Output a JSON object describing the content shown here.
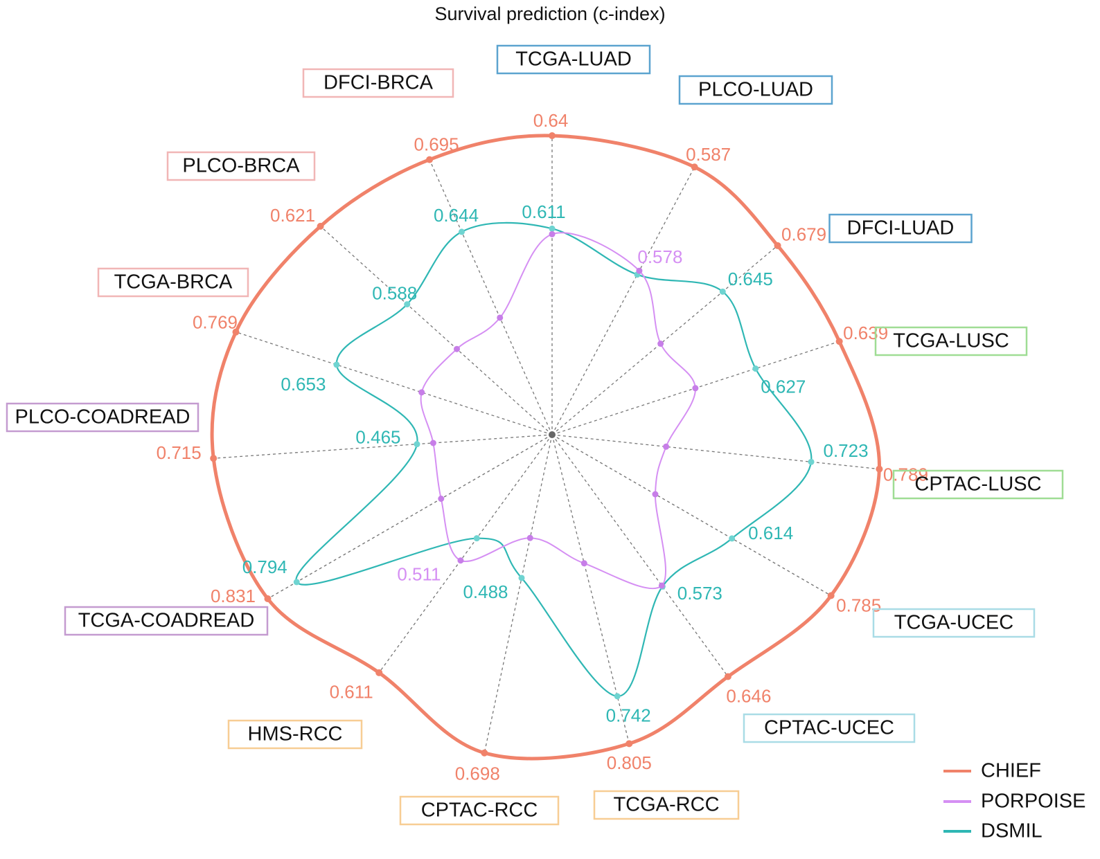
{
  "chart_data": {
    "type": "radar",
    "title": "Survival prediction (c-index)",
    "categories": [
      "TCGA-LUAD",
      "PLCO-LUAD",
      "DFCI-LUAD",
      "TCGA-LUSC",
      "CPTAC-LUSC",
      "TCGA-UCEC",
      "CPTAC-UCEC",
      "TCGA-RCC",
      "CPTAC-RCC",
      "HMS-RCC",
      "TCGA-COADREAD",
      "PLCO-COADREAD",
      "TCGA-BRCA",
      "PLCO-BRCA",
      "DFCI-BRCA"
    ],
    "category_colors": [
      "#5ba3cf",
      "#5ba3cf",
      "#5ba3cf",
      "#9fdd94",
      "#9fdd94",
      "#a9dce6",
      "#a9dce6",
      "#f7cd94",
      "#f7cd94",
      "#f7cd94",
      "#c49bd0",
      "#c49bd0",
      "#f1b6b6",
      "#f1b6b6",
      "#f1b6b6"
    ],
    "series": [
      {
        "name": "CHIEF",
        "color": "#f0826a",
        "values": [
          0.64,
          0.587,
          0.679,
          0.639,
          0.789,
          0.785,
          0.646,
          0.805,
          0.698,
          0.611,
          0.831,
          0.715,
          0.769,
          0.621,
          0.695
        ],
        "labels": [
          "0.64",
          "0.587",
          "0.679",
          "0.639",
          "0.789",
          "0.785",
          "0.646",
          "0.805",
          "0.698",
          "0.611",
          "0.831",
          "0.715",
          "0.769",
          "0.621",
          "0.695"
        ]
      },
      {
        "name": "PORPOISE",
        "color": "#d58ff3",
        "values": [
          0.611,
          0.578,
          0.48,
          0.5,
          0.42,
          0.43,
          0.58,
          0.46,
          0.4,
          0.511,
          0.45,
          0.43,
          0.47,
          0.45,
          0.45
        ],
        "labels": [
          "",
          "0.578",
          "",
          "",
          "",
          "",
          "",
          "",
          "",
          "0.511",
          "",
          "",
          "",
          "",
          ""
        ]
      },
      {
        "name": "DSMIL",
        "color": "#2fb7b4",
        "values": [
          0.611,
          0.56,
          0.645,
          0.627,
          0.723,
          0.614,
          0.573,
          0.742,
          0.488,
          0.45,
          0.794,
          0.465,
          0.653,
          0.588,
          0.644
        ],
        "labels": [
          "0.611",
          "",
          "0.645",
          "0.627",
          "0.723",
          "0.614",
          "0.573",
          "0.742",
          "0.488",
          "",
          "0.794",
          "0.465",
          "0.653",
          "0.588",
          "0.644"
        ]
      }
    ],
    "legend_position": "bottom-right"
  }
}
